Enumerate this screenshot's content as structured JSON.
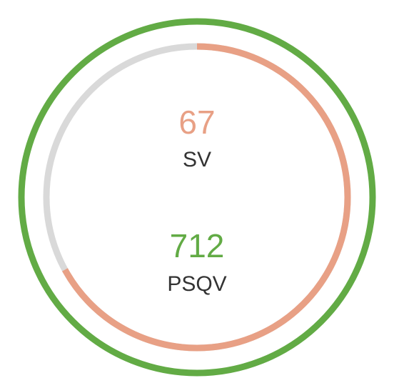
{
  "gauge": {
    "sv": {
      "value": "67",
      "label": "SV",
      "fraction": 0.67,
      "color": "#E8A085"
    },
    "psqv": {
      "value": "712",
      "label": "PSQV",
      "fraction": 1.0,
      "color": "#62AB45"
    },
    "track_color": "#D9D9D9",
    "label_color": "#333333"
  }
}
